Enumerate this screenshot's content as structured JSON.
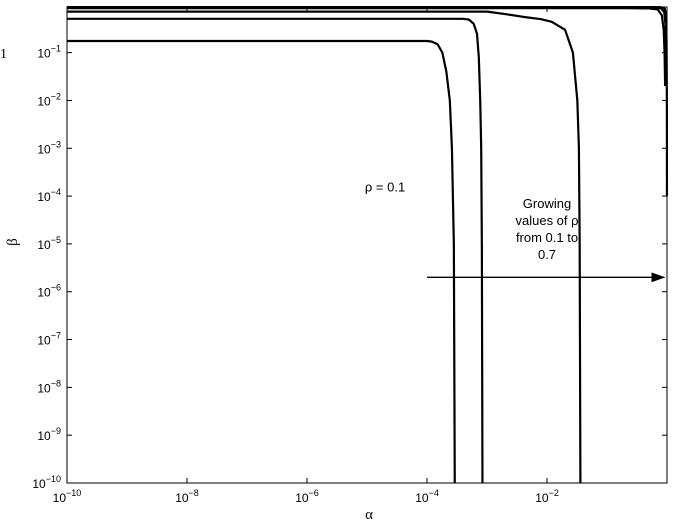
{
  "chart_data": {
    "type": "line",
    "title": "",
    "xlabel": "α",
    "ylabel": "β",
    "xscale": "log",
    "yscale": "log",
    "xlim": [
      1e-10,
      0.999
    ],
    "ylim": [
      1e-10,
      0.9
    ],
    "grid": false,
    "x_ticks": [
      {
        "value": 1e-10,
        "base": "10",
        "exp": "−10"
      },
      {
        "value": 1e-08,
        "base": "10",
        "exp": "−8"
      },
      {
        "value": 1e-06,
        "base": "10",
        "exp": "−6"
      },
      {
        "value": 0.0001,
        "base": "10",
        "exp": "−4"
      },
      {
        "value": 0.01,
        "base": "10",
        "exp": "−2"
      }
    ],
    "y_ticks": [
      {
        "value": 1e-10,
        "base": "10",
        "exp": "−10"
      },
      {
        "value": 1e-09,
        "base": "10",
        "exp": "−9"
      },
      {
        "value": 1e-08,
        "base": "10",
        "exp": "−8"
      },
      {
        "value": 1e-07,
        "base": "10",
        "exp": "−7"
      },
      {
        "value": 1e-06,
        "base": "10",
        "exp": "−6"
      },
      {
        "value": 1e-05,
        "base": "10",
        "exp": "−5"
      },
      {
        "value": 0.0001,
        "base": "10",
        "exp": "−4"
      },
      {
        "value": 0.001,
        "base": "10",
        "exp": "−3"
      },
      {
        "value": 0.01,
        "base": "10",
        "exp": "−2"
      },
      {
        "value": 0.1,
        "base": "10",
        "exp": "−1"
      }
    ],
    "series": [
      {
        "points": [
          [
            1e-10,
            0.175
          ],
          [
            0.0001,
            0.175
          ],
          [
            0.00012,
            0.17
          ],
          [
            0.00015,
            0.15
          ],
          [
            0.00018,
            0.1
          ],
          [
            0.00021,
            0.04
          ],
          [
            0.00024,
            0.01
          ],
          [
            0.00026,
            0.001
          ],
          [
            0.00028,
            1e-05
          ],
          [
            0.00029,
            1e-10
          ]
        ]
      },
      {
        "points": [
          [
            1e-10,
            0.51
          ],
          [
            0.0004,
            0.51
          ],
          [
            0.0005,
            0.49
          ],
          [
            0.0006,
            0.4
          ],
          [
            0.00068,
            0.25
          ],
          [
            0.00073,
            0.08
          ],
          [
            0.00077,
            0.01
          ],
          [
            0.0008,
            0.001
          ],
          [
            0.00082,
            1e-05
          ],
          [
            0.00084,
            1e-10
          ]
        ]
      },
      {
        "points": [
          [
            1e-10,
            0.72
          ],
          [
            0.001,
            0.72
          ],
          [
            0.002,
            0.64
          ],
          [
            0.004,
            0.56
          ],
          [
            0.008,
            0.5
          ],
          [
            0.012,
            0.44
          ],
          [
            0.02,
            0.3
          ],
          [
            0.027,
            0.1
          ],
          [
            0.032,
            0.01
          ],
          [
            0.034,
            0.001
          ],
          [
            0.035,
            1e-05
          ],
          [
            0.036,
            1e-10
          ]
        ]
      },
      {
        "points": [
          [
            1e-10,
            0.85
          ],
          [
            0.2,
            0.85
          ],
          [
            0.5,
            0.84
          ],
          [
            0.7,
            0.8
          ],
          [
            0.82,
            0.6
          ],
          [
            0.88,
            0.3
          ],
          [
            0.91,
            0.1
          ],
          [
            0.93,
            0.02
          ]
        ]
      },
      {
        "points": [
          [
            1e-10,
            0.88
          ],
          [
            0.35,
            0.88
          ],
          [
            0.6,
            0.87
          ],
          [
            0.8,
            0.84
          ],
          [
            0.9,
            0.7
          ],
          [
            0.94,
            0.4
          ],
          [
            0.96,
            0.1
          ],
          [
            0.97,
            0.03
          ]
        ]
      },
      {
        "points": [
          [
            1e-10,
            0.895
          ],
          [
            0.5,
            0.895
          ],
          [
            0.8,
            0.89
          ],
          [
            0.92,
            0.82
          ],
          [
            0.96,
            0.6
          ],
          [
            0.98,
            0.2
          ],
          [
            0.99,
            0.03
          ],
          [
            0.995,
            0.005
          ],
          [
            0.997,
            0.0001
          ]
        ]
      }
    ],
    "annotations": [
      {
        "text": "ρ = 0.1",
        "x": 2e-05,
        "y": 0.00015
      },
      {
        "text_lines": [
          "Growing",
          "values of ρ",
          "from 0.1 to",
          "0.7"
        ],
        "x": 0.01,
        "y": 2e-05
      },
      {
        "type": "arrow",
        "from": [
          0.0001,
          2e-06
        ],
        "to": [
          0.9,
          2e-06
        ]
      }
    ],
    "edge_label": "1"
  }
}
